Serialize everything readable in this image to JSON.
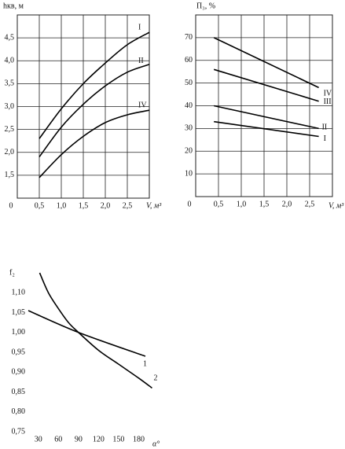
{
  "chart_data": [
    {
      "type": "line",
      "y_label": "hкв, м",
      "x_label": "V, м³",
      "x": [
        0.5,
        1.0,
        1.5,
        2.0,
        2.5,
        3.0
      ],
      "series": [
        {
          "name": "I",
          "color": "#000000",
          "values": [
            2.3,
            2.95,
            3.5,
            3.95,
            4.35,
            4.62
          ]
        },
        {
          "name": "II",
          "color": "#000000",
          "values": [
            1.9,
            2.55,
            3.05,
            3.45,
            3.75,
            3.92
          ]
        },
        {
          "name": "IV",
          "color": "#000000",
          "values": [
            1.45,
            1.95,
            2.35,
            2.65,
            2.82,
            2.92
          ]
        }
      ],
      "xlim": [
        0,
        3.0
      ],
      "xticks": [
        0,
        {
          "value": 0.5,
          "label": "0,5"
        },
        {
          "value": 1.0,
          "label": "1,0"
        },
        {
          "value": 1.5,
          "label": "1,5"
        },
        {
          "value": 2.0,
          "label": "2,0"
        },
        {
          "value": 2.5,
          "label": "2,5"
        }
      ],
      "ylim": [
        1.0,
        5.0
      ],
      "yticks": [
        {
          "value": 1.5,
          "label": "1,5"
        },
        {
          "value": 2.0,
          "label": "2,0"
        },
        {
          "value": 2.5,
          "label": "2,5"
        },
        {
          "value": 3.0,
          "label": "3,0"
        },
        {
          "value": 3.5,
          "label": "3,5"
        },
        {
          "value": 4.0,
          "label": "4,0"
        },
        {
          "value": 4.5,
          "label": "4,5"
        }
      ],
      "grid": true
    },
    {
      "type": "line",
      "y_label": "П₃, %",
      "x_label": "V, м³",
      "x": [
        0.4,
        2.7
      ],
      "series": [
        {
          "name": "IV",
          "color": "#000000",
          "values": [
            70,
            48
          ]
        },
        {
          "name": "III",
          "color": "#000000",
          "values": [
            56,
            42
          ]
        },
        {
          "name": "II",
          "color": "#000000",
          "values": [
            40,
            30
          ]
        },
        {
          "name": "I",
          "color": "#000000",
          "values": [
            33,
            26.5
          ]
        }
      ],
      "xlim": [
        0,
        3.0
      ],
      "xticks": [
        0,
        {
          "value": 0.5,
          "label": "0,5"
        },
        {
          "value": 1.0,
          "label": "1,0"
        },
        {
          "value": 1.5,
          "label": "1,5"
        },
        {
          "value": 2.0,
          "label": "2,0"
        },
        {
          "value": 2.5,
          "label": "2,5"
        }
      ],
      "ylim": [
        0,
        80
      ],
      "yticks": [
        10,
        20,
        30,
        40,
        50,
        60,
        70
      ],
      "grid": true
    },
    {
      "type": "line",
      "y_label": "f₂",
      "x_label": "α°",
      "series": [
        {
          "name": "1",
          "color": "#000000",
          "x": [
            15,
            90,
            190
          ],
          "values": [
            1.055,
            1.0,
            0.94
          ]
        },
        {
          "name": "2",
          "color": "#000000",
          "x": [
            32,
            45,
            60,
            75,
            90,
            120,
            150,
            180,
            200
          ],
          "values": [
            1.15,
            1.1,
            1.06,
            1.025,
            1.0,
            0.955,
            0.92,
            0.885,
            0.86
          ]
        }
      ],
      "xlim": [
        15,
        210
      ],
      "xticks": [
        30,
        60,
        90,
        120,
        150,
        180
      ],
      "ylim": [
        0.75,
        1.15
      ],
      "yticks": [
        {
          "value": 0.75,
          "label": "0,75"
        },
        {
          "value": 0.8,
          "label": "0,80"
        },
        {
          "value": 0.85,
          "label": "0,85"
        },
        {
          "value": 0.9,
          "label": "0,90"
        },
        {
          "value": 0.95,
          "label": "0,95"
        },
        {
          "value": 1.0,
          "label": "1,00"
        },
        {
          "value": 1.05,
          "label": "1,05"
        },
        {
          "value": 1.1,
          "label": "1,10"
        }
      ],
      "grid": false
    }
  ]
}
